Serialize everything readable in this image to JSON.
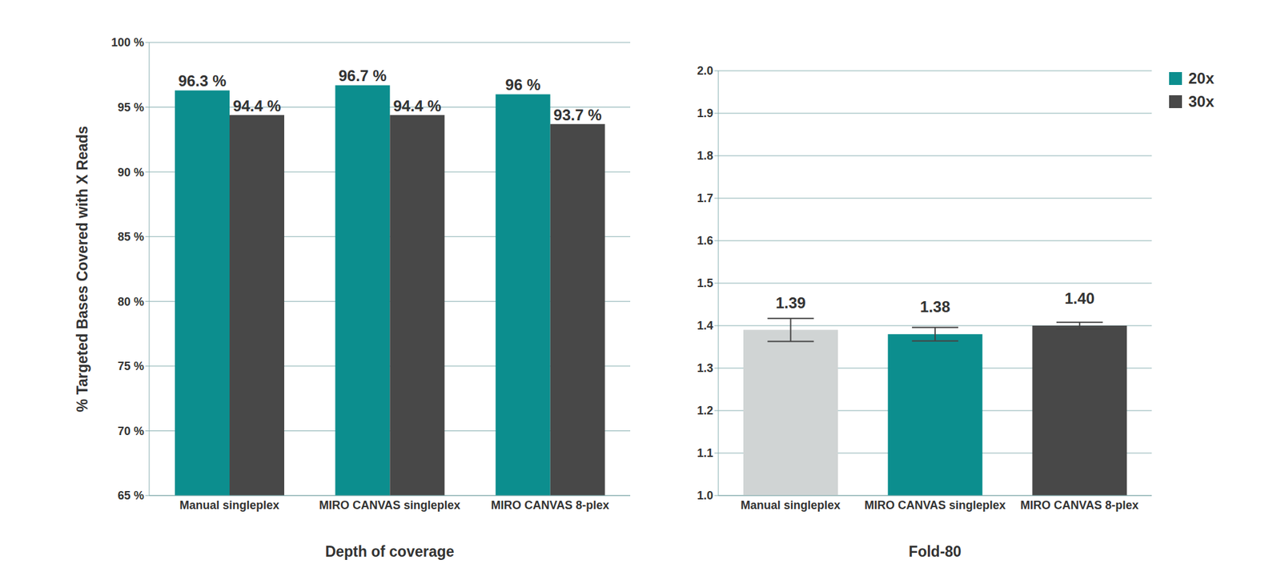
{
  "chart_data": [
    {
      "type": "bar",
      "x_label": "Depth of coverage",
      "y_label": "% Targeted Bases Covered with X Reads",
      "categories": [
        "Manual singleplex",
        "MIRO CANVAS singleplex",
        "MIRO CANVAS 8-plex"
      ],
      "series": [
        {
          "name": "20x",
          "color": "#0c8e8e",
          "values": [
            96.3,
            96.7,
            96
          ],
          "value_labels": [
            "96.3 %",
            "96.7 %",
            "96 %"
          ]
        },
        {
          "name": "30x",
          "color": "#484848",
          "values": [
            94.4,
            94.4,
            93.7
          ],
          "value_labels": [
            "94.4 %",
            "94.4 %",
            "93.7 %"
          ]
        }
      ],
      "ylim": [
        65,
        100
      ],
      "yticks": [
        {
          "value": 65,
          "label": "65 %"
        },
        {
          "value": 70,
          "label": "70 %"
        },
        {
          "value": 75,
          "label": "75 %"
        },
        {
          "value": 80,
          "label": "80 %"
        },
        {
          "value": 85,
          "label": "85 %"
        },
        {
          "value": 90,
          "label": "90 %"
        },
        {
          "value": 95,
          "label": "95 %"
        },
        {
          "value": 100,
          "label": "100 %"
        }
      ],
      "grid": true,
      "legend": "top right",
      "data_labels": true
    },
    {
      "type": "bar",
      "x_label": "Fold-80",
      "categories": [
        "Manual singleplex",
        "MIRO CANVAS singleplex",
        "MIRO CANVAS 8-plex"
      ],
      "values": [
        1.39,
        1.38,
        1.4
      ],
      "value_labels": [
        "1.39",
        "1.38",
        "1.40"
      ],
      "errors": [
        0.027,
        0.016,
        0.008
      ],
      "colors": [
        "#d0d4d4",
        "#0c8e8e",
        "#484848"
      ],
      "ylim": [
        1.0,
        2.0
      ],
      "yticks": [
        {
          "value": 1.0,
          "label": "1.0"
        },
        1.1,
        1.2,
        1.3,
        1.4,
        1.5,
        1.6,
        1.7,
        1.8,
        1.9,
        {
          "value": 2.0,
          "label": "2.0"
        }
      ],
      "grid": true,
      "data_labels": true
    }
  ]
}
